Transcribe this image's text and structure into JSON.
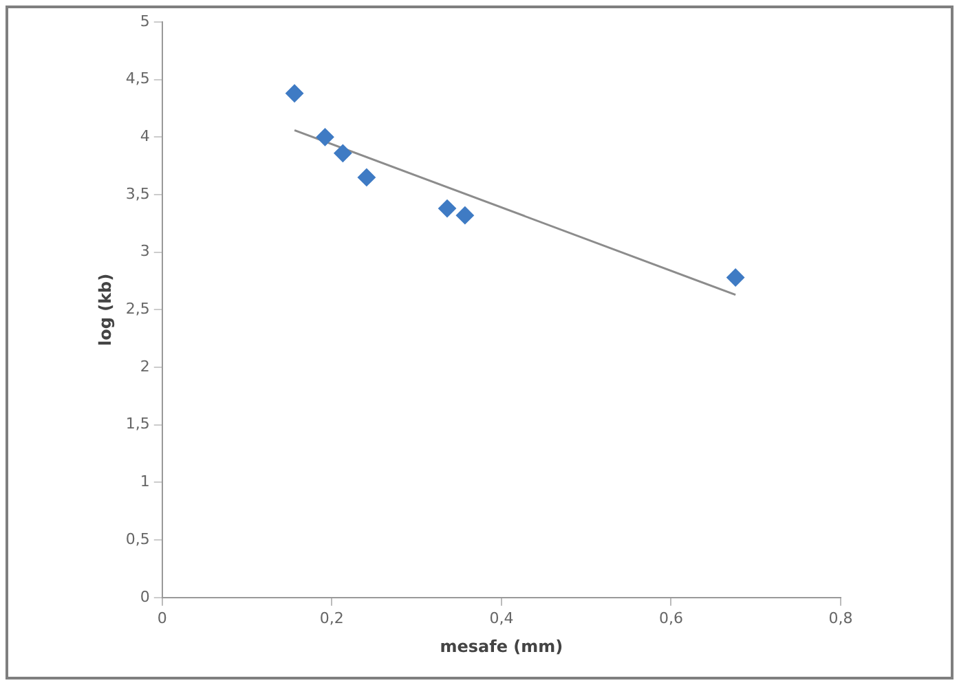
{
  "chart_data": {
    "type": "scatter",
    "xlabel": "mesafe (mm)",
    "ylabel": "log (kb)",
    "xlim": [
      0,
      0.8
    ],
    "xticks": [
      0,
      {
        "value": 0.2,
        "label": "0,2"
      },
      {
        "value": 0.4,
        "label": "0,4"
      },
      {
        "value": 0.6,
        "label": "0,6"
      },
      {
        "value": 0.8,
        "label": "0,8"
      }
    ],
    "ylim": [
      0,
      5
    ],
    "yticks": [
      0,
      {
        "value": 0.5,
        "label": "0,5"
      },
      1,
      {
        "value": 1.5,
        "label": "1,5"
      },
      2,
      {
        "value": 2.5,
        "label": "2,5"
      },
      3,
      {
        "value": 3.5,
        "label": "3,5"
      },
      4,
      {
        "value": 4.5,
        "label": "4,5"
      },
      5
    ],
    "grid": false,
    "legend": false,
    "marker": "diamond",
    "series": [
      {
        "color": "#3f7bc4",
        "x": [
          0.156,
          0.192,
          0.213,
          0.241,
          0.336,
          0.357,
          0.676
        ],
        "values": [
          4.38,
          4.0,
          3.86,
          3.65,
          3.38,
          3.32,
          2.78
        ]
      },
      {
        "type": "line",
        "marker": "none",
        "color": "#8c8c8c",
        "x": [
          0.156,
          0.676
        ],
        "values": [
          4.06,
          2.63
        ]
      }
    ]
  }
}
